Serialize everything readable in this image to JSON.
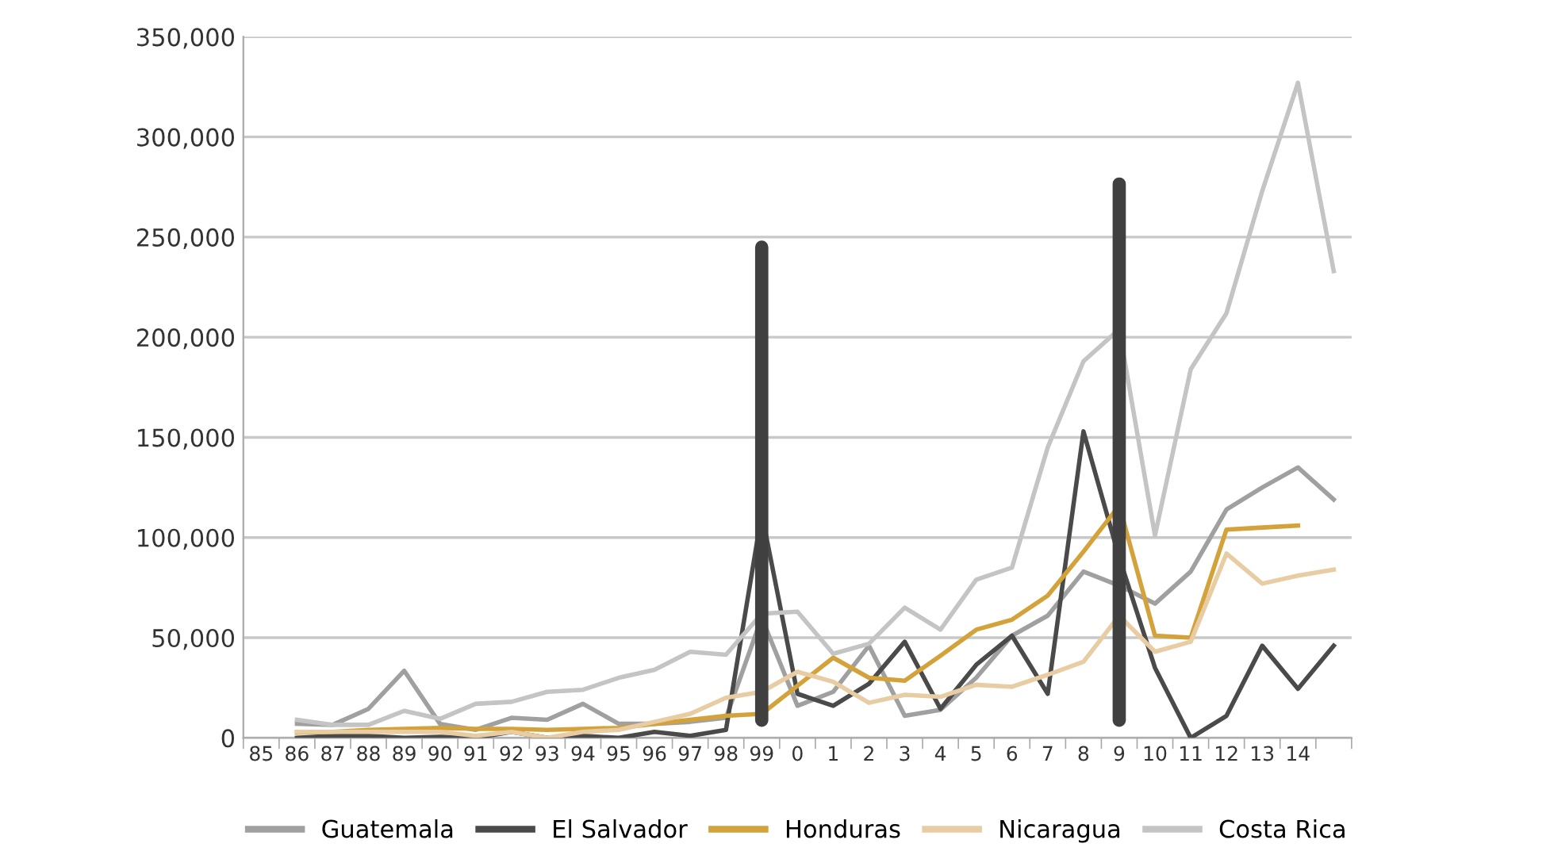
{
  "chart_data": {
    "type": "line",
    "categories": [
      "85",
      "86",
      "87",
      "88",
      "89",
      "90",
      "91",
      "92",
      "93",
      "94",
      "95",
      "96",
      "97",
      "98",
      "99",
      "0",
      "1",
      "2",
      "3",
      "4",
      "5",
      "6",
      "7",
      "8",
      "9",
      "10",
      "11",
      "12",
      "13",
      "14",
      null
    ],
    "series": [
      {
        "name": "Guatemala",
        "color": "#a0a0a0",
        "values": [
          null,
          7000,
          6500,
          14500,
          33500,
          7000,
          4000,
          10000,
          9000,
          17000,
          7000,
          7000,
          8000,
          10000,
          60000,
          16000,
          23000,
          46000,
          11000,
          14000,
          30000,
          51000,
          61000,
          83000,
          76000,
          67000,
          83000,
          114000,
          125000,
          135000,
          119000
        ]
      },
      {
        "name": "El Salvador",
        "color": "#4a4a4a",
        "values": [
          null,
          0,
          1000,
          1000,
          0,
          500,
          0,
          3000,
          0,
          1000,
          0,
          3000,
          1000,
          4000,
          112000,
          22000,
          16000,
          27000,
          48000,
          14500,
          36500,
          51000,
          22000,
          153000,
          90000,
          35000,
          0,
          11000,
          46000,
          24500,
          46000
        ]
      },
      {
        "name": "Honduras",
        "color": "#d4a23a",
        "values": [
          null,
          2600,
          3000,
          4000,
          4500,
          5000,
          4500,
          4500,
          4000,
          4500,
          5000,
          7000,
          9000,
          11000,
          12000,
          26000,
          40000,
          30000,
          28500,
          41000,
          54000,
          59000,
          71000,
          93000,
          116000,
          51000,
          50000,
          104000,
          105000,
          106000,
          null
        ]
      },
      {
        "name": "Nicaragua",
        "color": "#e8cca4",
        "values": [
          null,
          3000,
          3000,
          3000,
          3000,
          3000,
          1000,
          3000,
          0,
          3000,
          4000,
          8000,
          12000,
          20000,
          23000,
          33000,
          28000,
          17500,
          21500,
          20500,
          26500,
          25500,
          31500,
          38000,
          61000,
          43000,
          48000,
          92000,
          77000,
          81000,
          84000
        ]
      },
      {
        "name": "Costa Rica",
        "color": "#c4c4c4",
        "values": [
          null,
          9000,
          6500,
          6500,
          13500,
          9500,
          17000,
          18000,
          23000,
          24000,
          30000,
          34000,
          43000,
          41500,
          62000,
          63000,
          42000,
          47000,
          65000,
          54000,
          79000,
          85000,
          145000,
          188000,
          204000,
          101000,
          184000,
          212000,
          273000,
          327000,
          233000
        ]
      }
    ],
    "ylim": [
      0,
      350000
    ],
    "yticks": [
      {
        "value": 0,
        "label": "0"
      },
      {
        "value": 50000,
        "label": "50,000"
      },
      {
        "value": 100000,
        "label": "100,000"
      },
      {
        "value": 150000,
        "label": "150,000"
      },
      {
        "value": 200000,
        "label": "200,000"
      },
      {
        "value": 250000,
        "label": "250,000"
      },
      {
        "value": 300000,
        "label": "300,000"
      },
      {
        "value": 350000,
        "label": "350,000"
      }
    ],
    "grid": "y",
    "legend": "bottom",
    "ref_lines": [
      {
        "axis": "x",
        "value": "99",
        "color": "#404040"
      },
      {
        "axis": "x",
        "value": "9",
        "color": "#404040"
      }
    ]
  }
}
